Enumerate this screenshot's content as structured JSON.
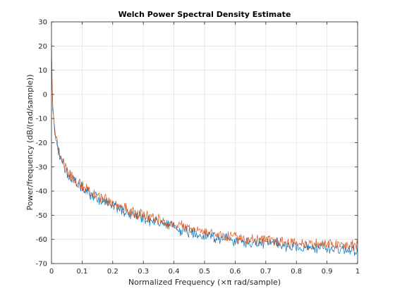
{
  "chart_data": {
    "type": "line",
    "title": "Welch Power Spectral Density Estimate",
    "xlabel": "Normalized Frequency  (×π rad/sample)",
    "ylabel": "Power/frequency (dB/(rad/sample))",
    "xlim": [
      0,
      1
    ],
    "ylim": [
      -70,
      30
    ],
    "xticks": [
      0,
      0.1,
      0.2,
      0.3,
      0.4,
      0.5,
      0.6,
      0.7,
      0.8,
      0.9,
      1
    ],
    "xtick_labels": [
      "0",
      "0.1",
      "0.2",
      "0.3",
      "0.4",
      "0.5",
      "0.6",
      "0.7",
      "0.8",
      "0.9",
      "1"
    ],
    "yticks": [
      -70,
      -60,
      -50,
      -40,
      -30,
      -20,
      -10,
      0,
      10,
      20,
      30
    ],
    "ytick_labels": [
      "-70",
      "-60",
      "-50",
      "-40",
      "-30",
      "-20",
      "-10",
      "0",
      "10",
      "20",
      "30"
    ],
    "grid": true,
    "series": [
      {
        "color": "#0072BD",
        "x": [
          0,
          0.002,
          0.005,
          0.01,
          0.02,
          0.03,
          0.05,
          0.08,
          0.1,
          0.15,
          0.2,
          0.25,
          0.3,
          0.35,
          0.4,
          0.45,
          0.5,
          0.55,
          0.6,
          0.65,
          0.7,
          0.75,
          0.8,
          0.85,
          0.9,
          0.95,
          1
        ],
        "y": [
          15,
          4,
          -8,
          -15,
          -22,
          -27,
          -32,
          -37,
          -39,
          -43,
          -46,
          -49,
          -51,
          -53,
          -55,
          -57,
          -58,
          -59.5,
          -60.5,
          -61.5,
          -61.5,
          -62,
          -63,
          -63.5,
          -63.5,
          -64,
          -64
        ]
      },
      {
        "color": "#D95319",
        "x": [
          0,
          0.002,
          0.005,
          0.01,
          0.02,
          0.03,
          0.05,
          0.08,
          0.1,
          0.15,
          0.2,
          0.25,
          0.3,
          0.35,
          0.4,
          0.45,
          0.5,
          0.55,
          0.6,
          0.65,
          0.7,
          0.75,
          0.8,
          0.85,
          0.9,
          0.95,
          1
        ],
        "y": [
          21,
          6,
          -6,
          -14,
          -21,
          -26,
          -31,
          -36,
          -38,
          -42,
          -45,
          -48,
          -50,
          -52,
          -54,
          -55.5,
          -56.5,
          -58,
          -59,
          -60,
          -60.5,
          -61,
          -61.5,
          -62,
          -62,
          -62.5,
          -62.5
        ]
      }
    ]
  }
}
